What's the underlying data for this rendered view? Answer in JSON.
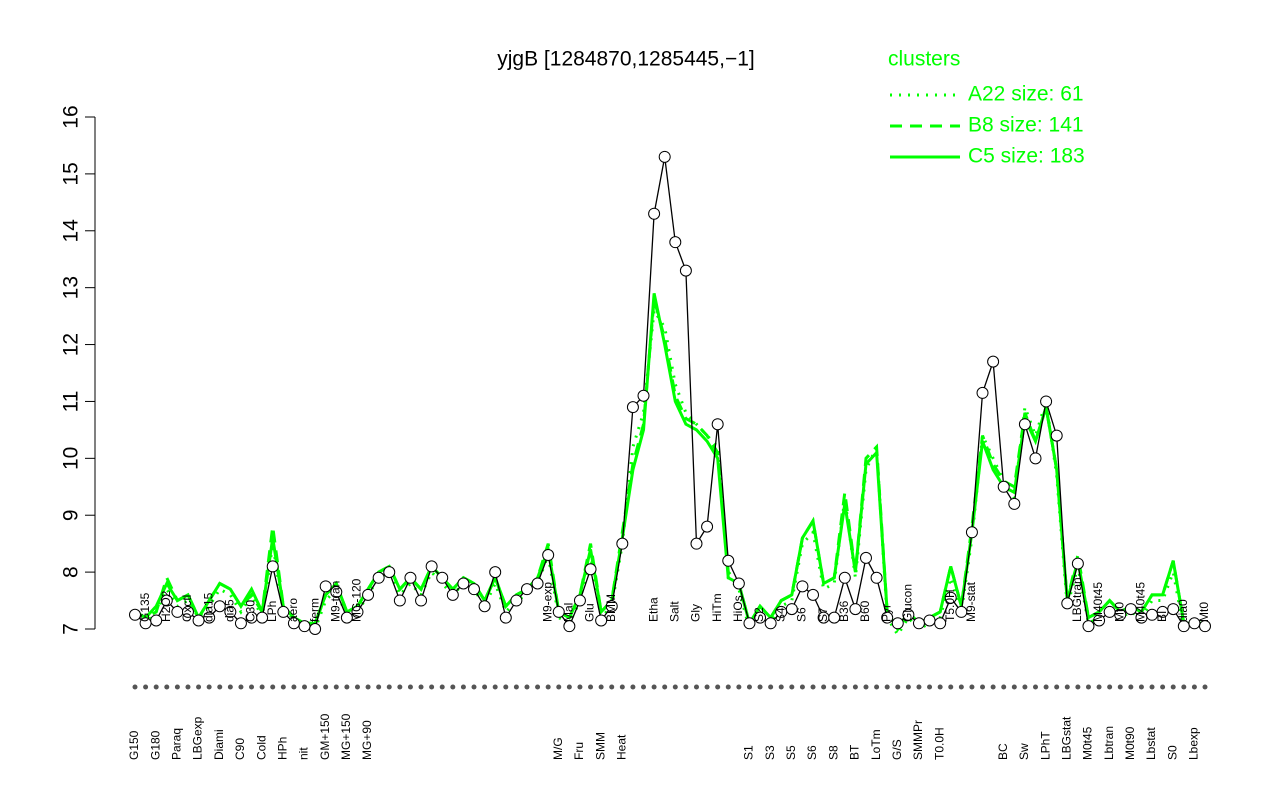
{
  "chart_data": {
    "type": "line",
    "title": "yjgB [1284870,1285445,−1]",
    "legend_title": "clusters",
    "categories": [
      "G150",
      "G135",
      "G180",
      "H2O2",
      "Paraq",
      "Oxctl",
      "LBGexp",
      "dia15",
      "Diami",
      "dia5",
      "C90",
      "C30",
      "Cold",
      "LPh",
      "HPh",
      "aero",
      "nit",
      "ferm",
      "GM+150",
      "M9-tran",
      "MG+150",
      "MG-120",
      "MG+90",
      null,
      null,
      null,
      null,
      null,
      null,
      null,
      null,
      null,
      null,
      null,
      null,
      null,
      null,
      null,
      null,
      "M9-exp",
      "M/G",
      "Mal",
      "Fru",
      "Glu",
      "SMM",
      "BMM",
      "Heat",
      null,
      null,
      "Etha",
      null,
      "Salt",
      null,
      "Gly",
      null,
      "HiTm",
      null,
      "HiOs",
      "S1",
      "S2",
      "S3",
      "S4",
      "S5",
      "S6",
      "S6",
      "S7",
      "S8",
      "B36",
      "BT",
      "B60",
      "LoTm",
      "Pyr",
      "G/S",
      "Glucon",
      "SMMPr",
      null,
      "T0.0H",
      "T5.0H",
      null,
      "M9-stat",
      null,
      null,
      "BC",
      null,
      "Sw",
      null,
      "LPhT",
      null,
      "LBGstat",
      "LBGtran",
      "M0t45",
      "M40t45",
      "Lbtran",
      "Mt0",
      "M0t90",
      "M40t45",
      "Lbstat",
      "BI",
      "S0",
      "dia0",
      "Lbexp",
      "Mt0"
    ],
    "values": [
      7.25,
      7.1,
      7.15,
      7.5,
      7.3,
      7.3,
      7.15,
      7.2,
      7.4,
      7.3,
      7.1,
      7.2,
      7.2,
      8.1,
      7.3,
      7.1,
      7.05,
      7.0,
      7.75,
      7.65,
      7.2,
      7.3,
      7.6,
      7.9,
      8.0,
      7.5,
      7.9,
      7.5,
      8.1,
      7.9,
      7.6,
      7.8,
      7.7,
      7.4,
      8.0,
      7.2,
      7.5,
      7.7,
      7.8,
      8.3,
      7.3,
      7.05,
      7.5,
      8.05,
      7.15,
      7.4,
      8.5,
      10.9,
      11.1,
      14.3,
      15.3,
      13.8,
      13.3,
      8.5,
      8.8,
      10.6,
      8.2,
      7.8,
      7.1,
      7.2,
      7.1,
      7.3,
      7.35,
      7.75,
      7.6,
      7.2,
      7.2,
      7.9,
      7.35,
      8.25,
      7.9,
      7.2,
      7.1,
      7.25,
      7.1,
      7.15,
      7.1,
      7.55,
      7.3,
      8.7,
      11.15,
      11.7,
      9.5,
      9.2,
      10.6,
      10.0,
      11.0,
      10.4,
      7.45,
      8.15,
      7.05,
      7.15,
      7.3,
      7.25,
      7.35,
      7.2,
      7.25,
      7.3,
      7.35,
      7.05,
      7.1,
      7.05
    ],
    "color": "#000000",
    "series": [
      {
        "name": "A22 size: 61",
        "color": "#00ff00",
        "dash": "dotted",
        "values": [
          7.2,
          7.1,
          7.3,
          7.7,
          7.4,
          7.5,
          7.2,
          7.4,
          7.7,
          7.6,
          7.3,
          7.6,
          7.2,
          8.5,
          7.3,
          7.2,
          7.1,
          7.0,
          7.5,
          7.7,
          7.2,
          7.3,
          7.6,
          7.9,
          8.0,
          7.6,
          7.8,
          7.6,
          8.0,
          7.8,
          7.6,
          7.8,
          7.7,
          7.4,
          7.8,
          7.3,
          7.5,
          7.6,
          7.8,
          8.3,
          7.2,
          7.1,
          7.5,
          8.3,
          7.2,
          7.4,
          8.5,
          10.2,
          10.8,
          12.6,
          12.3,
          11.3,
          10.8,
          10.6,
          10.4,
          10.2,
          7.9,
          7.7,
          7.0,
          7.3,
          7.1,
          7.4,
          7.5,
          8.5,
          8.7,
          7.7,
          7.8,
          9.3,
          7.9,
          9.8,
          10.2,
          7.2,
          6.9,
          7.2,
          7.0,
          7.1,
          7.2,
          7.9,
          7.3,
          8.6,
          10.4,
          10.0,
          9.6,
          9.3,
          10.9,
          10.4,
          11.0,
          9.7,
          7.4,
          8.1,
          7.1,
          7.2,
          7.4,
          7.2,
          7.3,
          7.2,
          7.5,
          7.5,
          8.0,
          7.0,
          7.1,
          7.0
        ]
      },
      {
        "name": "B8 size: 141",
        "color": "#00ff00",
        "dash": "dashed",
        "values": [
          7.3,
          7.2,
          7.3,
          7.9,
          7.5,
          7.6,
          7.2,
          7.5,
          7.8,
          7.7,
          7.4,
          7.6,
          7.3,
          8.8,
          7.4,
          7.2,
          7.1,
          7.1,
          7.6,
          7.8,
          7.3,
          7.4,
          7.7,
          8.0,
          8.1,
          7.7,
          7.9,
          7.7,
          8.1,
          7.9,
          7.7,
          7.9,
          7.8,
          7.5,
          7.9,
          7.4,
          7.6,
          7.7,
          7.9,
          8.5,
          7.3,
          7.2,
          7.6,
          8.5,
          7.3,
          7.5,
          8.7,
          9.9,
          10.6,
          12.8,
          12.1,
          11.1,
          10.7,
          10.6,
          10.4,
          10.1,
          8.0,
          7.8,
          7.1,
          7.4,
          7.2,
          7.5,
          7.6,
          8.6,
          8.9,
          7.8,
          7.9,
          9.4,
          8.0,
          10.0,
          10.2,
          7.3,
          7.0,
          7.3,
          7.1,
          7.2,
          7.3,
          8.1,
          7.4,
          8.8,
          10.4,
          9.9,
          9.6,
          9.5,
          10.8,
          10.3,
          10.9,
          9.8,
          7.5,
          8.3,
          7.2,
          7.3,
          7.5,
          7.3,
          7.4,
          7.3,
          7.6,
          7.6,
          8.2,
          7.1,
          7.1,
          7.1
        ]
      },
      {
        "name": "C5 size: 183",
        "color": "#00ff00",
        "dash": "solid",
        "values": [
          7.3,
          7.2,
          7.4,
          7.8,
          7.5,
          7.6,
          7.2,
          7.5,
          7.8,
          7.7,
          7.4,
          7.7,
          7.3,
          8.6,
          7.4,
          7.2,
          7.1,
          7.1,
          7.6,
          7.8,
          7.3,
          7.4,
          7.7,
          8.0,
          8.1,
          7.7,
          7.9,
          7.7,
          8.1,
          7.9,
          7.7,
          7.9,
          7.8,
          7.5,
          7.9,
          7.4,
          7.6,
          7.7,
          7.9,
          8.4,
          7.3,
          7.2,
          7.6,
          8.4,
          7.3,
          7.5,
          8.6,
          9.8,
          10.5,
          12.9,
          12.0,
          11.0,
          10.6,
          10.5,
          10.3,
          10.0,
          7.9,
          7.8,
          7.1,
          7.4,
          7.2,
          7.5,
          7.6,
          8.6,
          8.9,
          7.8,
          7.9,
          9.2,
          8.0,
          9.9,
          10.1,
          7.3,
          7.0,
          7.3,
          7.1,
          7.2,
          7.3,
          8.1,
          7.4,
          8.7,
          10.3,
          9.8,
          9.5,
          9.4,
          10.7,
          10.3,
          10.9,
          9.8,
          7.5,
          8.2,
          7.2,
          7.3,
          7.5,
          7.3,
          7.4,
          7.3,
          7.6,
          7.6,
          8.2,
          7.1,
          7.1,
          7.1
        ]
      }
    ],
    "ylim": [
      7,
      16
    ],
    "yticks": [
      7,
      8,
      9,
      10,
      11,
      12,
      13,
      14,
      15,
      16
    ]
  }
}
